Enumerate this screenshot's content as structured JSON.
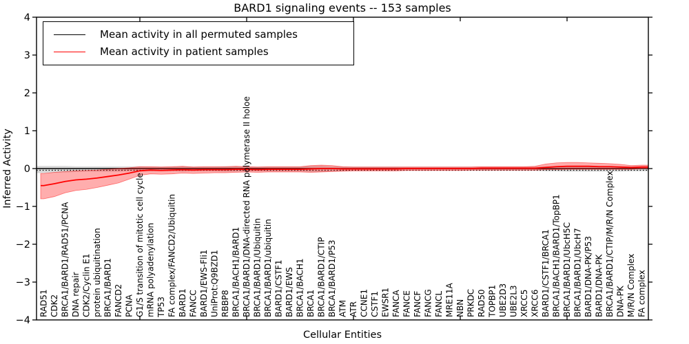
{
  "figure": {
    "title": "BARD1 signaling events -- 153 samples",
    "xlabel": "Cellular Entities",
    "ylabel": "Inferred Activity"
  },
  "legend": {
    "items": [
      {
        "label": "Mean activity in all permuted samples",
        "color": "#000000"
      },
      {
        "label": "Mean activity in patient samples",
        "color": "#ff0000"
      }
    ]
  },
  "chart_data": {
    "type": "line",
    "title": "BARD1 signaling events -- 153 samples",
    "xlabel": "Cellular Entities",
    "ylabel": "Inferred Activity",
    "ylim": [
      -4,
      4
    ],
    "yticks": [
      4,
      3,
      2,
      1,
      0,
      -1,
      -2,
      -3,
      -4
    ],
    "grid": false,
    "legend_position": "upper left",
    "zero_line": true,
    "colors": {
      "patient": "#ff0000",
      "permuted": "#000000",
      "patient_band": "rgba(255,0,0,0.32)",
      "permuted_band": "rgba(0,0,0,0.15)"
    },
    "categories": [
      "RAD51",
      "CDK2",
      "BRCA1/BARD1/RAD51/PCNA",
      "DNA repair",
      "CDK2/Cyclin E1",
      "protein ubiquitination",
      "BRCA1/BARD1",
      "FANCD2",
      "PCNA",
      "G1/S transition of mitotic cell cycle",
      "mRNA polyadenylation",
      "TP53",
      "FA complex/FANCD2/Ubiquitin",
      "BARD1",
      "FANCC",
      "BARD1/EWS-Fli1",
      "UniProt:Q9BZD1",
      "RBBP8",
      "BRCA1/BACH1/BARD1",
      "BRCA1/BARD1/DNA-directed RNA polymerase II holoe",
      "BRCA1/BARD1/Ubiquitin",
      "BRCA1/BARD1/ubiquitin",
      "BARD1/CSTF1",
      "BARD1/EWS",
      "BRCA1/BACH1",
      "BRCA1",
      "BRCA1/BARD1/CTIP",
      "BRCA1/BARD1/P53",
      "ATM",
      "ATR",
      "CCNE1",
      "CSTF1",
      "EWSR1",
      "FANCA",
      "FANCE",
      "FANCF",
      "FANCG",
      "FANCL",
      "MRE11A",
      "NBN",
      "PRKDC",
      "RAD50",
      "TOPBP1",
      "UBE2D3",
      "UBE2L3",
      "XRCC5",
      "XRCC6",
      "BARD1/CSTF1/BRCA1",
      "BRCA1/BACH1/BARD1/TopBP1",
      "BRCA1/BARD1/UbcH5C",
      "BRCA1/BARD1/UbcH7",
      "BARD1/DNA-PK/P53",
      "BARD1/DNA-PK",
      "BRCA1/BARD1/CTIP/M/R/N Complex",
      "DNA-PK",
      "M/R/N Complex",
      "FA complex"
    ],
    "series": [
      {
        "name": "Mean activity in all permuted samples",
        "color": "#000000",
        "values": [
          0,
          0,
          0,
          0,
          0,
          0,
          0,
          0,
          0,
          0,
          0,
          0,
          0,
          0,
          0,
          0,
          0,
          0,
          0,
          0,
          0,
          0,
          0,
          0,
          0,
          0,
          0,
          0,
          0,
          0,
          0,
          0,
          0,
          0,
          0,
          0,
          0,
          0,
          0,
          0,
          0,
          0,
          0,
          0,
          0,
          0,
          0,
          0,
          0,
          0,
          0,
          0,
          0,
          0,
          0,
          0,
          0
        ],
        "band_hi": [
          0.07,
          0.07,
          0.07,
          0.06,
          0.06,
          0.06,
          0.06,
          0.06,
          0.06,
          0.06,
          0.05,
          0.05,
          0.05,
          0.06,
          0.05,
          0.05,
          0.05,
          0.06,
          0.06,
          0.05,
          0.05,
          0.05,
          0.05,
          0.05,
          0.05,
          0.07,
          0.07,
          0.06,
          0.05,
          0.05,
          0.05,
          0.05,
          0.05,
          0.05,
          0.05,
          0.05,
          0.05,
          0.05,
          0.05,
          0.05,
          0.05,
          0.05,
          0.05,
          0.05,
          0.05,
          0.05,
          0.05,
          0.06,
          0.06,
          0.06,
          0.06,
          0.06,
          0.06,
          0.06,
          0.06,
          0.06,
          0.06
        ],
        "band_lo": [
          -0.12,
          -0.11,
          -0.1,
          -0.09,
          -0.08,
          -0.08,
          -0.08,
          -0.08,
          -0.07,
          -0.07,
          -0.07,
          -0.07,
          -0.07,
          -0.08,
          -0.07,
          -0.07,
          -0.07,
          -0.08,
          -0.08,
          -0.07,
          -0.07,
          -0.07,
          -0.07,
          -0.07,
          -0.07,
          -0.09,
          -0.09,
          -0.08,
          -0.07,
          -0.06,
          -0.06,
          -0.06,
          -0.06,
          -0.06,
          -0.06,
          -0.06,
          -0.06,
          -0.06,
          -0.06,
          -0.06,
          -0.06,
          -0.06,
          -0.06,
          -0.06,
          -0.06,
          -0.06,
          -0.06,
          -0.07,
          -0.07,
          -0.08,
          -0.08,
          -0.08,
          -0.08,
          -0.08,
          -0.08,
          -0.07,
          -0.07
        ]
      },
      {
        "name": "Mean activity in patient samples",
        "color": "#ff0000",
        "values": [
          -0.45,
          -0.4,
          -0.34,
          -0.3,
          -0.28,
          -0.25,
          -0.21,
          -0.17,
          -0.12,
          -0.06,
          -0.04,
          -0.05,
          -0.04,
          -0.03,
          -0.04,
          -0.03,
          -0.03,
          -0.03,
          -0.02,
          -0.02,
          -0.03,
          -0.02,
          -0.02,
          -0.02,
          -0.02,
          -0.01,
          0,
          0,
          -0.01,
          -0.01,
          -0.01,
          -0.01,
          -0.01,
          -0.01,
          0,
          0,
          0,
          0,
          0,
          0,
          0,
          0.01,
          0.01,
          0.01,
          0.01,
          0.01,
          0.01,
          0.03,
          0.05,
          0.06,
          0.06,
          0.06,
          0.05,
          0.05,
          0.04,
          0.03,
          0.04
        ],
        "band_hi": [
          -0.13,
          -0.1,
          -0.08,
          -0.06,
          -0.05,
          -0.04,
          -0.02,
          0,
          0.02,
          0.05,
          0.05,
          0.04,
          0.05,
          0.06,
          0.04,
          0.05,
          0.05,
          0.05,
          0.06,
          0.05,
          0.04,
          0.05,
          0.05,
          0.05,
          0.05,
          0.08,
          0.09,
          0.08,
          0.05,
          0.04,
          0.04,
          0.04,
          0.04,
          0.04,
          0.04,
          0.04,
          0.04,
          0.04,
          0.04,
          0.04,
          0.04,
          0.05,
          0.05,
          0.05,
          0.05,
          0.05,
          0.06,
          0.12,
          0.15,
          0.16,
          0.16,
          0.15,
          0.14,
          0.13,
          0.11,
          0.08,
          0.09
        ],
        "band_lo": [
          -0.8,
          -0.74,
          -0.64,
          -0.58,
          -0.55,
          -0.5,
          -0.44,
          -0.38,
          -0.28,
          -0.18,
          -0.14,
          -0.15,
          -0.14,
          -0.12,
          -0.13,
          -0.12,
          -0.11,
          -0.11,
          -0.1,
          -0.09,
          -0.1,
          -0.09,
          -0.09,
          -0.09,
          -0.09,
          -0.1,
          -0.09,
          -0.08,
          -0.07,
          -0.06,
          -0.06,
          -0.06,
          -0.06,
          -0.06,
          -0.05,
          -0.05,
          -0.05,
          -0.05,
          -0.05,
          -0.05,
          -0.04,
          -0.04,
          -0.04,
          -0.04,
          -0.04,
          -0.04,
          -0.04,
          -0.03,
          -0.03,
          -0.02,
          -0.02,
          -0.02,
          -0.02,
          -0.02,
          -0.02,
          -0.02,
          0
        ]
      }
    ]
  }
}
